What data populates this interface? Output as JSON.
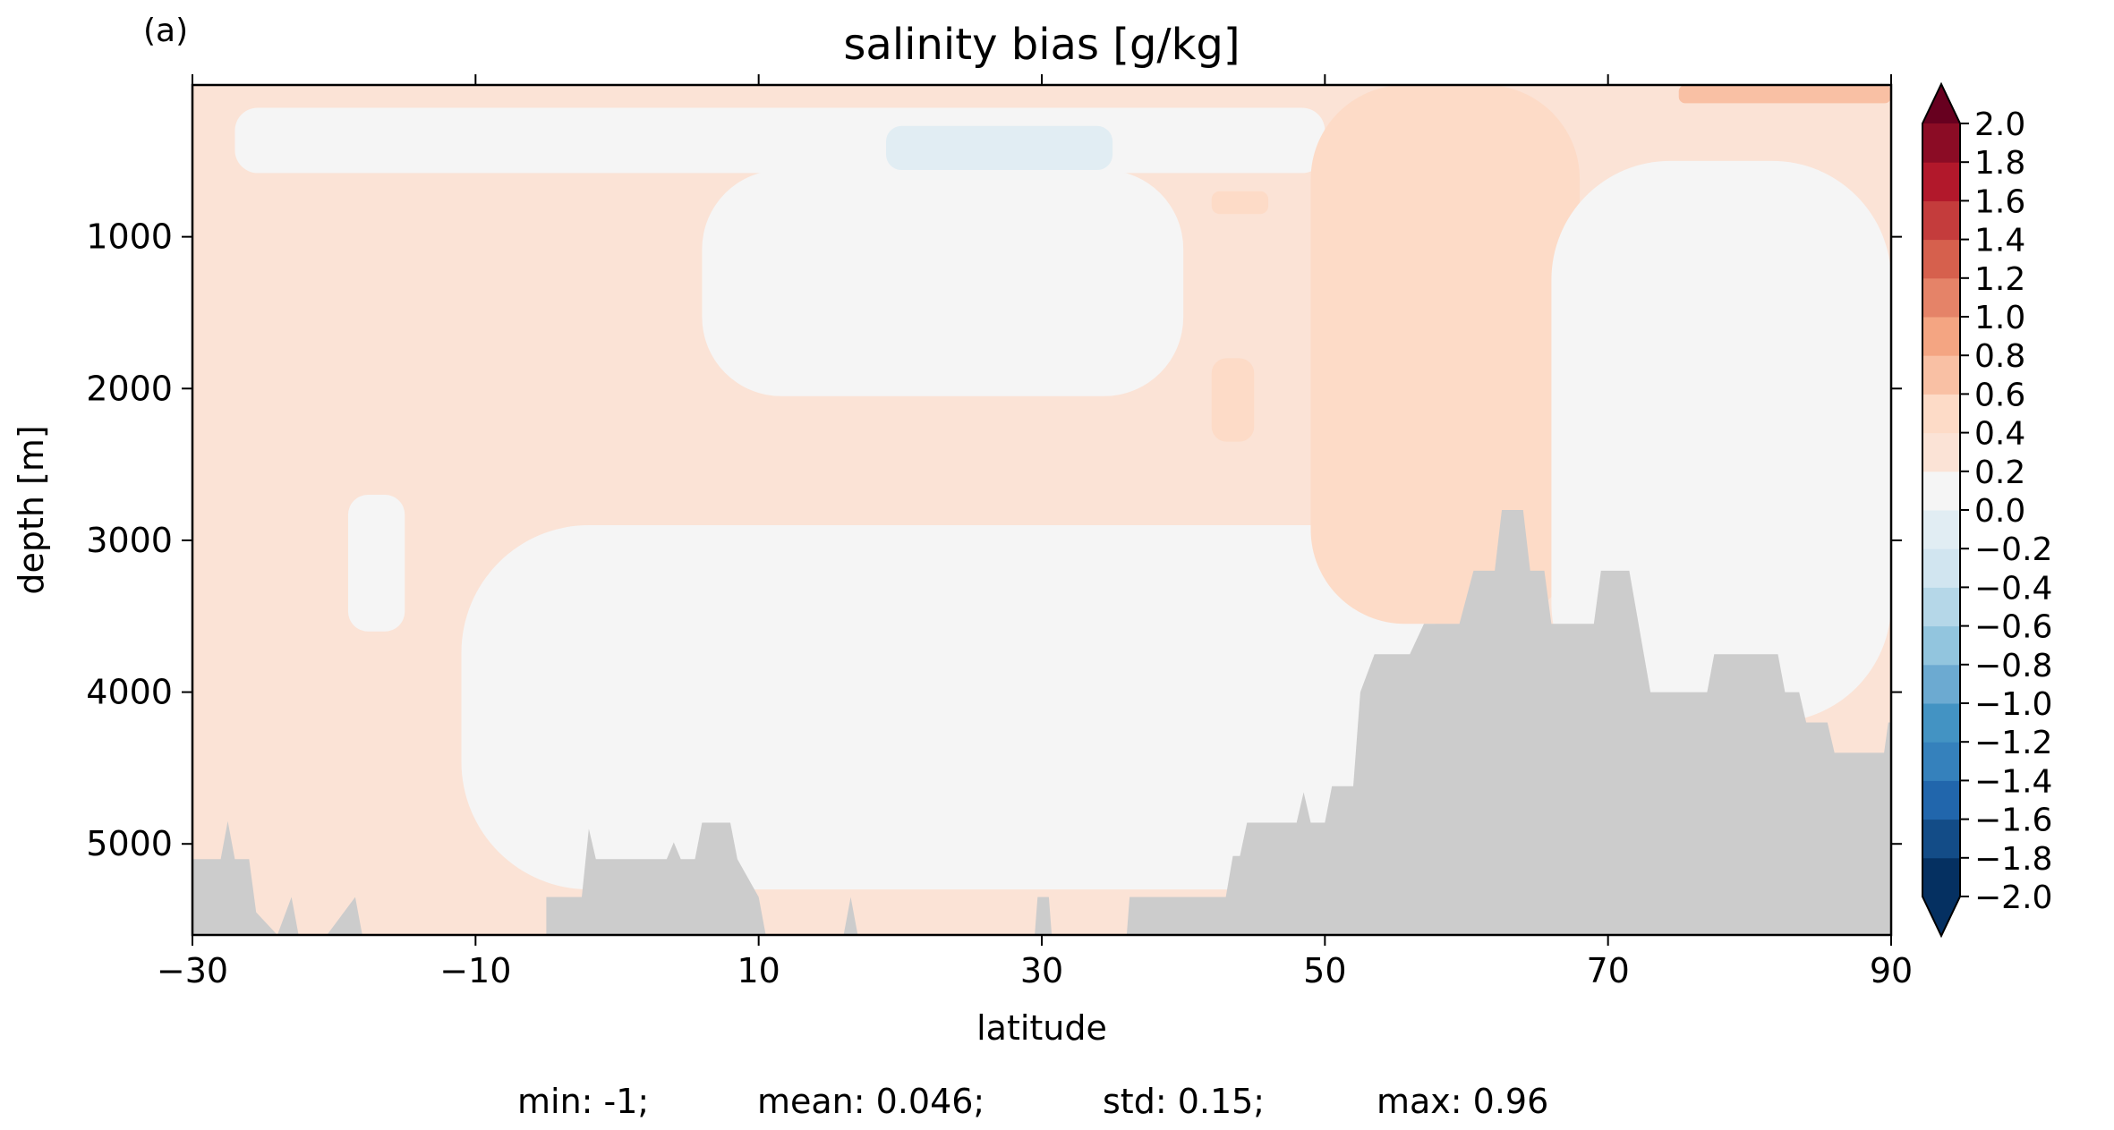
{
  "panel_label": "(a)",
  "title": "salinity bias [g/kg]",
  "xlabel": "latitude",
  "ylabel": "depth [m]",
  "stats_line": {
    "min": "min: -1;",
    "mean": "mean: 0.046;",
    "std": "std: 0.15;",
    "max": "max: 0.96"
  },
  "colors": {
    "land": "#cccccc",
    "colormap": [
      "#053061",
      "#134c87",
      "#2166ac",
      "#3581bc",
      "#4393c3",
      "#6caad1",
      "#92c5de",
      "#b5d7e8",
      "#d1e5f0",
      "#e1edf3",
      "#f5f5f5",
      "#fbe3d6",
      "#fddbc7",
      "#f9c0a4",
      "#f4a582",
      "#e58368",
      "#d6604d",
      "#c43c3c",
      "#b2182b",
      "#8b0c25",
      "#67001f"
    ]
  },
  "chart_data": {
    "type": "heatmap",
    "subtype": "filled-contour latitude-depth section",
    "title": "salinity bias [g/kg]",
    "xlabel": "latitude",
    "ylabel": "depth [m]",
    "xlim": [
      -30,
      90
    ],
    "ylim": [
      5600,
      0
    ],
    "y_inverted": true,
    "xticks": [
      -30,
      -10,
      10,
      30,
      50,
      70,
      90
    ],
    "xtick_labels": [
      "−30",
      "−10",
      "10",
      "30",
      "50",
      "70",
      "90"
    ],
    "yticks": [
      1000,
      2000,
      3000,
      4000,
      5000
    ],
    "ytick_labels": [
      "1000",
      "2000",
      "3000",
      "4000",
      "5000"
    ],
    "colorbar": {
      "levels": [
        -2.0,
        -1.8,
        -1.6,
        -1.4,
        -1.2,
        -1.0,
        -0.8,
        -0.6,
        -0.4,
        -0.2,
        0.0,
        0.2,
        0.4,
        0.6,
        0.8,
        1.0,
        1.2,
        1.4,
        1.6,
        1.8,
        2.0
      ],
      "tick_labels": [
        "−2.0",
        "−1.8",
        "−1.6",
        "−1.4",
        "−1.2",
        "−1.0",
        "−0.8",
        "−0.6",
        "−0.4",
        "−0.2",
        "0.0",
        "0.2",
        "0.4",
        "0.6",
        "0.8",
        "1.0",
        "1.2",
        "1.4",
        "1.6",
        "1.8",
        "2.0"
      ],
      "extend": "both"
    },
    "regions": [
      {
        "value_range": [
          0.0,
          0.2
        ],
        "lat": [
          -30,
          90
        ],
        "depth": [
          0,
          5600
        ],
        "note": "background"
      },
      {
        "value_range": [
          -0.2,
          0.0
        ],
        "lat": [
          -27,
          50
        ],
        "depth": [
          150,
          580
        ]
      },
      {
        "value_range": [
          -0.4,
          -0.2
        ],
        "lat": [
          19,
          35
        ],
        "depth": [
          270,
          560
        ]
      },
      {
        "value_range": [
          -0.2,
          0.0
        ],
        "lat": [
          6,
          40
        ],
        "depth": [
          560,
          2050
        ]
      },
      {
        "value_range": [
          -0.2,
          0.0
        ],
        "lat": [
          -19,
          -15
        ],
        "depth": [
          2700,
          3600
        ]
      },
      {
        "value_range": [
          -0.2,
          0.0
        ],
        "lat": [
          -11,
          58
        ],
        "depth": [
          2900,
          5300
        ]
      },
      {
        "value_range": [
          0.2,
          0.4
        ],
        "lat": [
          49,
          68
        ],
        "depth": [
          0,
          3550
        ]
      },
      {
        "value_range": [
          0.2,
          0.4
        ],
        "lat": [
          42,
          46
        ],
        "depth": [
          700,
          850
        ]
      },
      {
        "value_range": [
          0.2,
          0.4
        ],
        "lat": [
          42,
          45
        ],
        "depth": [
          1800,
          2350
        ]
      },
      {
        "value_range": [
          0.4,
          0.6
        ],
        "lat": [
          75,
          90
        ],
        "depth": [
          0,
          120
        ]
      },
      {
        "value_range": [
          -0.2,
          0.0
        ],
        "lat": [
          66,
          90
        ],
        "depth": [
          500,
          4200
        ]
      }
    ],
    "land_mask_depth": [
      [
        -30,
        5100
      ],
      [
        -28,
        5100
      ],
      [
        -27.5,
        4850
      ],
      [
        -27,
        5100
      ],
      [
        -26,
        5100
      ],
      [
        -25.5,
        5450
      ],
      [
        -24,
        5600
      ],
      [
        -23,
        5350
      ],
      [
        -22.5,
        5600
      ],
      [
        -20.5,
        5600
      ],
      [
        -18.5,
        5350
      ],
      [
        -18,
        5600
      ],
      [
        -5,
        5600
      ],
      [
        -5,
        5350
      ],
      [
        -2.5,
        5350
      ],
      [
        -2,
        4900
      ],
      [
        -1.5,
        5100
      ],
      [
        3.5,
        5100
      ],
      [
        4,
        4990
      ],
      [
        4.5,
        5100
      ],
      [
        5.5,
        5100
      ],
      [
        6,
        4860
      ],
      [
        8,
        4860
      ],
      [
        8.5,
        5100
      ],
      [
        10,
        5350
      ],
      [
        10.5,
        5600
      ],
      [
        16,
        5600
      ],
      [
        16.5,
        5350
      ],
      [
        17,
        5600
      ],
      [
        29.5,
        5600
      ],
      [
        29.7,
        5350
      ],
      [
        30.5,
        5350
      ],
      [
        30.7,
        5600
      ],
      [
        36,
        5600
      ],
      [
        36.2,
        5350
      ],
      [
        43,
        5350
      ],
      [
        43.5,
        5080
      ],
      [
        44,
        5080
      ],
      [
        44.5,
        4860
      ],
      [
        48,
        4860
      ],
      [
        48.5,
        4660
      ],
      [
        49,
        4860
      ],
      [
        50,
        4860
      ],
      [
        50.5,
        4620
      ],
      [
        52,
        4620
      ],
      [
        52.5,
        4000
      ],
      [
        53.5,
        3750
      ],
      [
        56,
        3750
      ],
      [
        57,
        3550
      ],
      [
        59.5,
        3550
      ],
      [
        60.5,
        3200
      ],
      [
        62,
        3200
      ],
      [
        62.5,
        2800
      ],
      [
        64,
        2800
      ],
      [
        64.5,
        3200
      ],
      [
        65.5,
        3200
      ],
      [
        66,
        3550
      ],
      [
        69,
        3550
      ],
      [
        69.5,
        3200
      ],
      [
        71.5,
        3200
      ],
      [
        73,
        4000
      ],
      [
        77,
        4000
      ],
      [
        77.5,
        3750
      ],
      [
        82,
        3750
      ],
      [
        82.5,
        4000
      ],
      [
        83.5,
        4000
      ],
      [
        84,
        4200
      ],
      [
        85.5,
        4200
      ],
      [
        86,
        4400
      ],
      [
        89.5,
        4400
      ],
      [
        89.8,
        4200
      ],
      [
        90,
        4200
      ]
    ]
  }
}
